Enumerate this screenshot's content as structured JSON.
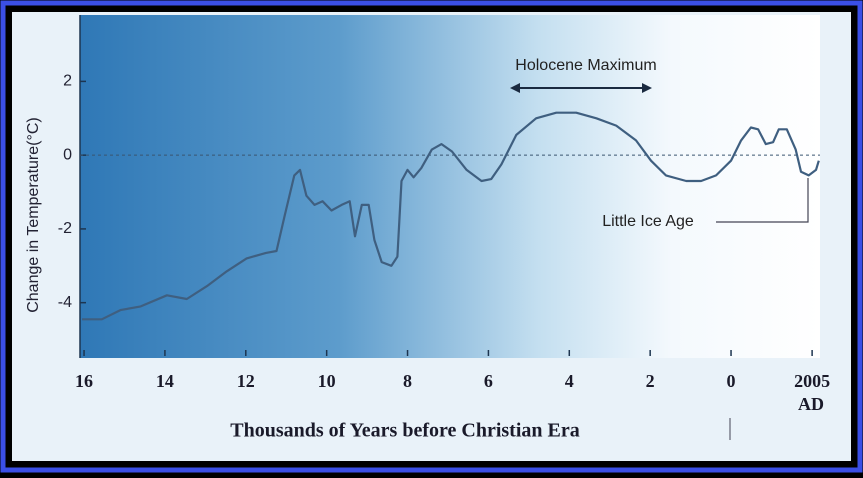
{
  "chart_data": {
    "type": "line",
    "y_label": "Change in Temperature(°C)",
    "x_label": "Thousands of Years before Christian Era",
    "annotations": [
      "Holocene Maximum",
      "Little Ice Age",
      "AD"
    ],
    "x": [
      16.05,
      15.56,
      15.1,
      14.6,
      13.95,
      13.46,
      12.96,
      12.47,
      11.98,
      11.5,
      11.24,
      11.04,
      10.8,
      10.66,
      10.5,
      10.3,
      10.1,
      9.88,
      9.63,
      9.43,
      9.3,
      9.13,
      8.96,
      8.82,
      8.64,
      8.4,
      8.25,
      8.15,
      8.0,
      7.85,
      7.66,
      7.4,
      7.16,
      6.9,
      6.54,
      6.17,
      5.93,
      5.68,
      5.31,
      4.82,
      4.32,
      3.83,
      3.33,
      2.84,
      2.35,
      1.98,
      1.61,
      1.11,
      0.74,
      0.37,
      0.0,
      -0.25,
      -0.49,
      -0.67,
      -0.86,
      -1.04,
      -1.18,
      -1.38,
      -1.6,
      -1.73,
      -1.92,
      -2.1,
      -2.17
    ],
    "values": [
      -4.45,
      -4.45,
      -4.2,
      -4.1,
      -3.8,
      -3.9,
      -3.55,
      -3.15,
      -2.8,
      -2.65,
      -2.6,
      -1.65,
      -0.55,
      -0.4,
      -1.1,
      -1.35,
      -1.25,
      -1.5,
      -1.35,
      -1.25,
      -2.2,
      -1.35,
      -1.35,
      -2.3,
      -2.9,
      -3.0,
      -2.75,
      -0.7,
      -0.4,
      -0.6,
      -0.35,
      0.15,
      0.3,
      0.1,
      -0.4,
      -0.7,
      -0.65,
      -0.25,
      0.55,
      1.0,
      1.15,
      1.15,
      1.0,
      0.8,
      0.4,
      -0.15,
      -0.55,
      -0.7,
      -0.7,
      -0.55,
      -0.15,
      0.4,
      0.75,
      0.7,
      0.3,
      0.35,
      0.7,
      0.7,
      0.15,
      -0.45,
      -0.55,
      -0.4,
      -0.15
    ],
    "color": "#3f5f80",
    "xlim": [
      16.1,
      -2.2
    ],
    "ylim": [
      -5.5,
      3.8
    ],
    "xticks": [
      16,
      14,
      12,
      10,
      8,
      6,
      4,
      2,
      0,
      {
        "value": -2.005,
        "label": "2005"
      }
    ],
    "yticks": [
      2,
      0,
      -2,
      -4
    ],
    "zero_line": true,
    "grid": false
  }
}
